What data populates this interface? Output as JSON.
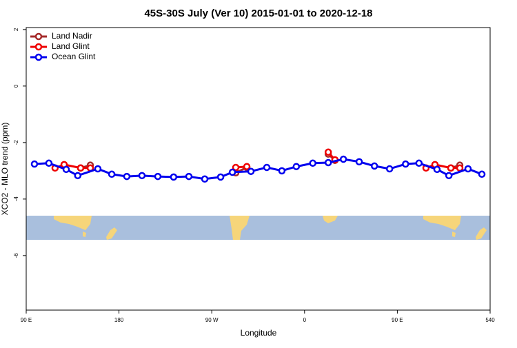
{
  "chart_data": {
    "type": "line",
    "title": "45S-30S July (Ver 10)   2015-01-01 to 2020-12-18",
    "x_label": "Longitude",
    "y_label": "XCO2 - MLO trend (ppm)",
    "xlim": [
      90,
      540
    ],
    "xticks": [
      {
        "value": 90,
        "label": "90 E"
      },
      180,
      {
        "value": 270,
        "label": "90 W"
      },
      {
        "value": 360,
        "label": "0"
      },
      {
        "value": 450,
        "label": "90 E"
      },
      540
    ],
    "ylim": [
      -7.93,
      2.07
    ],
    "yticks": [
      2,
      0,
      -2,
      -4,
      -6
    ],
    "legend": "top-left",
    "series": [
      {
        "name": "Land Nadir",
        "color": "#a52a2a",
        "x": [
          142.8,
          152.2,
          null,
          293.3,
          304,
          null,
          383,
          389.5,
          null,
          501.9,
          510.6
        ],
        "values": [
          -2.9,
          -2.8,
          null,
          -3.07,
          -2.88,
          null,
          -2.41,
          -2.63,
          null,
          -2.9,
          -2.8
        ]
      },
      {
        "name": "Land Glint",
        "color": "#ee0000",
        "x": [
          118,
          126.8,
          142.8,
          152.2,
          null,
          293.3,
          304,
          null,
          383,
          389.5,
          null,
          477.8,
          486.5,
          501.9,
          510.6
        ],
        "values": [
          -2.9,
          -2.78,
          -2.9,
          -2.9,
          null,
          -2.88,
          -2.85,
          null,
          -2.34,
          -2.61,
          null,
          -2.9,
          -2.78,
          -2.9,
          -2.9
        ]
      },
      {
        "name": "Ocean Glint",
        "color": "#0000ee",
        "x": [
          98,
          112,
          128.8,
          140,
          159.5,
          173,
          187.6,
          202.3,
          217.7,
          233,
          247.8,
          263.2,
          278.6,
          290,
          308,
          323.4,
          338,
          352,
          368,
          383,
          397.7,
          413,
          427.8,
          442.5,
          458,
          471,
          488.5,
          500,
          518.6,
          532
        ],
        "values": [
          -2.76,
          -2.73,
          -2.95,
          -3.17,
          -2.93,
          -3.12,
          -3.2,
          -3.17,
          -3.2,
          -3.22,
          -3.2,
          -3.29,
          -3.22,
          -3.05,
          -3.02,
          -2.88,
          -3.0,
          -2.85,
          -2.73,
          -2.71,
          -2.59,
          -2.68,
          -2.83,
          -2.93,
          -2.76,
          -2.73,
          -2.95,
          -3.17,
          -2.93,
          -3.12
        ]
      }
    ]
  }
}
